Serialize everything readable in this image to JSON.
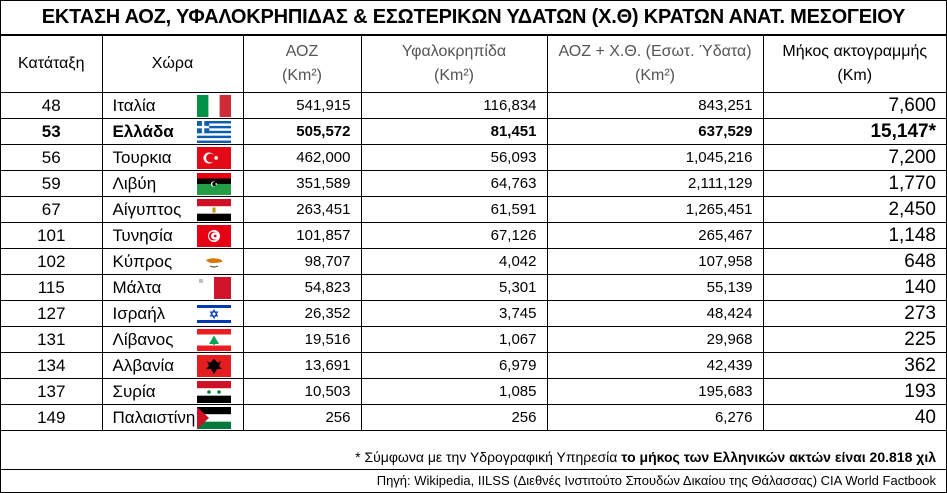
{
  "title": "ΕΚΤΑΣΗ ΑΟΖ, ΥΦΑΛΟΚΡΗΠΙΔΑΣ & ΕΣΩΤΕΡΙΚΩΝ ΥΔΑΤΩΝ (Χ.Θ) ΚΡΑΤΩΝ ΑΝΑΤ. ΜΕΣΟΓΕΙΟΥ",
  "headers": {
    "rank": "Κατάταξη",
    "country": "Χώρα",
    "eez": {
      "l1": "ΑΟΖ",
      "l2": "(Km²)"
    },
    "shelf": {
      "l1": "Υφαλοκρηπίδα",
      "l2": "(Km²)"
    },
    "eez_inner": {
      "l1": "ΑΟΖ + Χ.Θ. (Εσωτ. Ύδατα)",
      "l2": "(Km²)"
    },
    "coast": {
      "l1": "Μήκος ακτογραμμής",
      "l2": "(Km)"
    }
  },
  "rows": [
    {
      "rank": "48",
      "country": "Ιταλία",
      "flag": "italy-flag",
      "eez": "541,915",
      "shelf": "116,834",
      "eez_inner": "843,251",
      "coast": "7,600",
      "bold": false
    },
    {
      "rank": "53",
      "country": "Ελλάδα",
      "flag": "greece-flag",
      "eez": "505,572",
      "shelf": "81,451",
      "eez_inner": "637,529",
      "coast": "15,147*",
      "bold": true
    },
    {
      "rank": "56",
      "country": "Τουρκια",
      "flag": "turkey-flag",
      "eez": "462,000",
      "shelf": "56,093",
      "eez_inner": "1,045,216",
      "coast": "7,200",
      "bold": false
    },
    {
      "rank": "59",
      "country": "Λιβύη",
      "flag": "libya-flag",
      "eez": "351,589",
      "shelf": "64,763",
      "eez_inner": "2,111,129",
      "coast": "1,770",
      "bold": false
    },
    {
      "rank": "67",
      "country": "Αίγυπτος",
      "flag": "egypt-flag",
      "eez": "263,451",
      "shelf": "61,591",
      "eez_inner": "1,265,451",
      "coast": "2,450",
      "bold": false
    },
    {
      "rank": "101",
      "country": "Τυνησία",
      "flag": "tunisia-flag",
      "eez": "101,857",
      "shelf": "67,126",
      "eez_inner": "265,467",
      "coast": "1,148",
      "bold": false
    },
    {
      "rank": "102",
      "country": "Κύπρος",
      "flag": "cyprus-flag",
      "eez": "98,707",
      "shelf": "4,042",
      "eez_inner": "107,958",
      "coast": "648",
      "bold": false
    },
    {
      "rank": "115",
      "country": "Μάλτα",
      "flag": "malta-flag",
      "eez": "54,823",
      "shelf": "5,301",
      "eez_inner": "55,139",
      "coast": "140",
      "bold": false
    },
    {
      "rank": "127",
      "country": "Ισραήλ",
      "flag": "israel-flag",
      "eez": "26,352",
      "shelf": "3,745",
      "eez_inner": "48,424",
      "coast": "273",
      "bold": false
    },
    {
      "rank": "131",
      "country": "Λίβανος",
      "flag": "lebanon-flag",
      "eez": "19,516",
      "shelf": "1,067",
      "eez_inner": "29,968",
      "coast": "225",
      "bold": false
    },
    {
      "rank": "134",
      "country": "Αλβανία",
      "flag": "albania-flag",
      "eez": "13,691",
      "shelf": "6,979",
      "eez_inner": "42,439",
      "coast": "362",
      "bold": false
    },
    {
      "rank": "137",
      "country": "Συρία",
      "flag": "syria-flag",
      "eez": "10,503",
      "shelf": "1,085",
      "eez_inner": "195,683",
      "coast": "193",
      "bold": false
    },
    {
      "rank": "149",
      "country": "Παλαιστίνη",
      "flag": "palestine-flag",
      "eez": "256",
      "shelf": "256",
      "eez_inner": "6,276",
      "coast": "40",
      "bold": false
    }
  ],
  "note": {
    "prefix": "* Σύμφωνα με την Υδρογραφική Υπηρεσία ",
    "bold": "το μήκος των Ελληνικών ακτών είναι 20.818 χιλ"
  },
  "source": "Πηγή: Wikipedia, IILSS (Διεθνές Ινστιτούτο Σπουδών Δικαίου της Θάλασσας) CIA World Factbook"
}
